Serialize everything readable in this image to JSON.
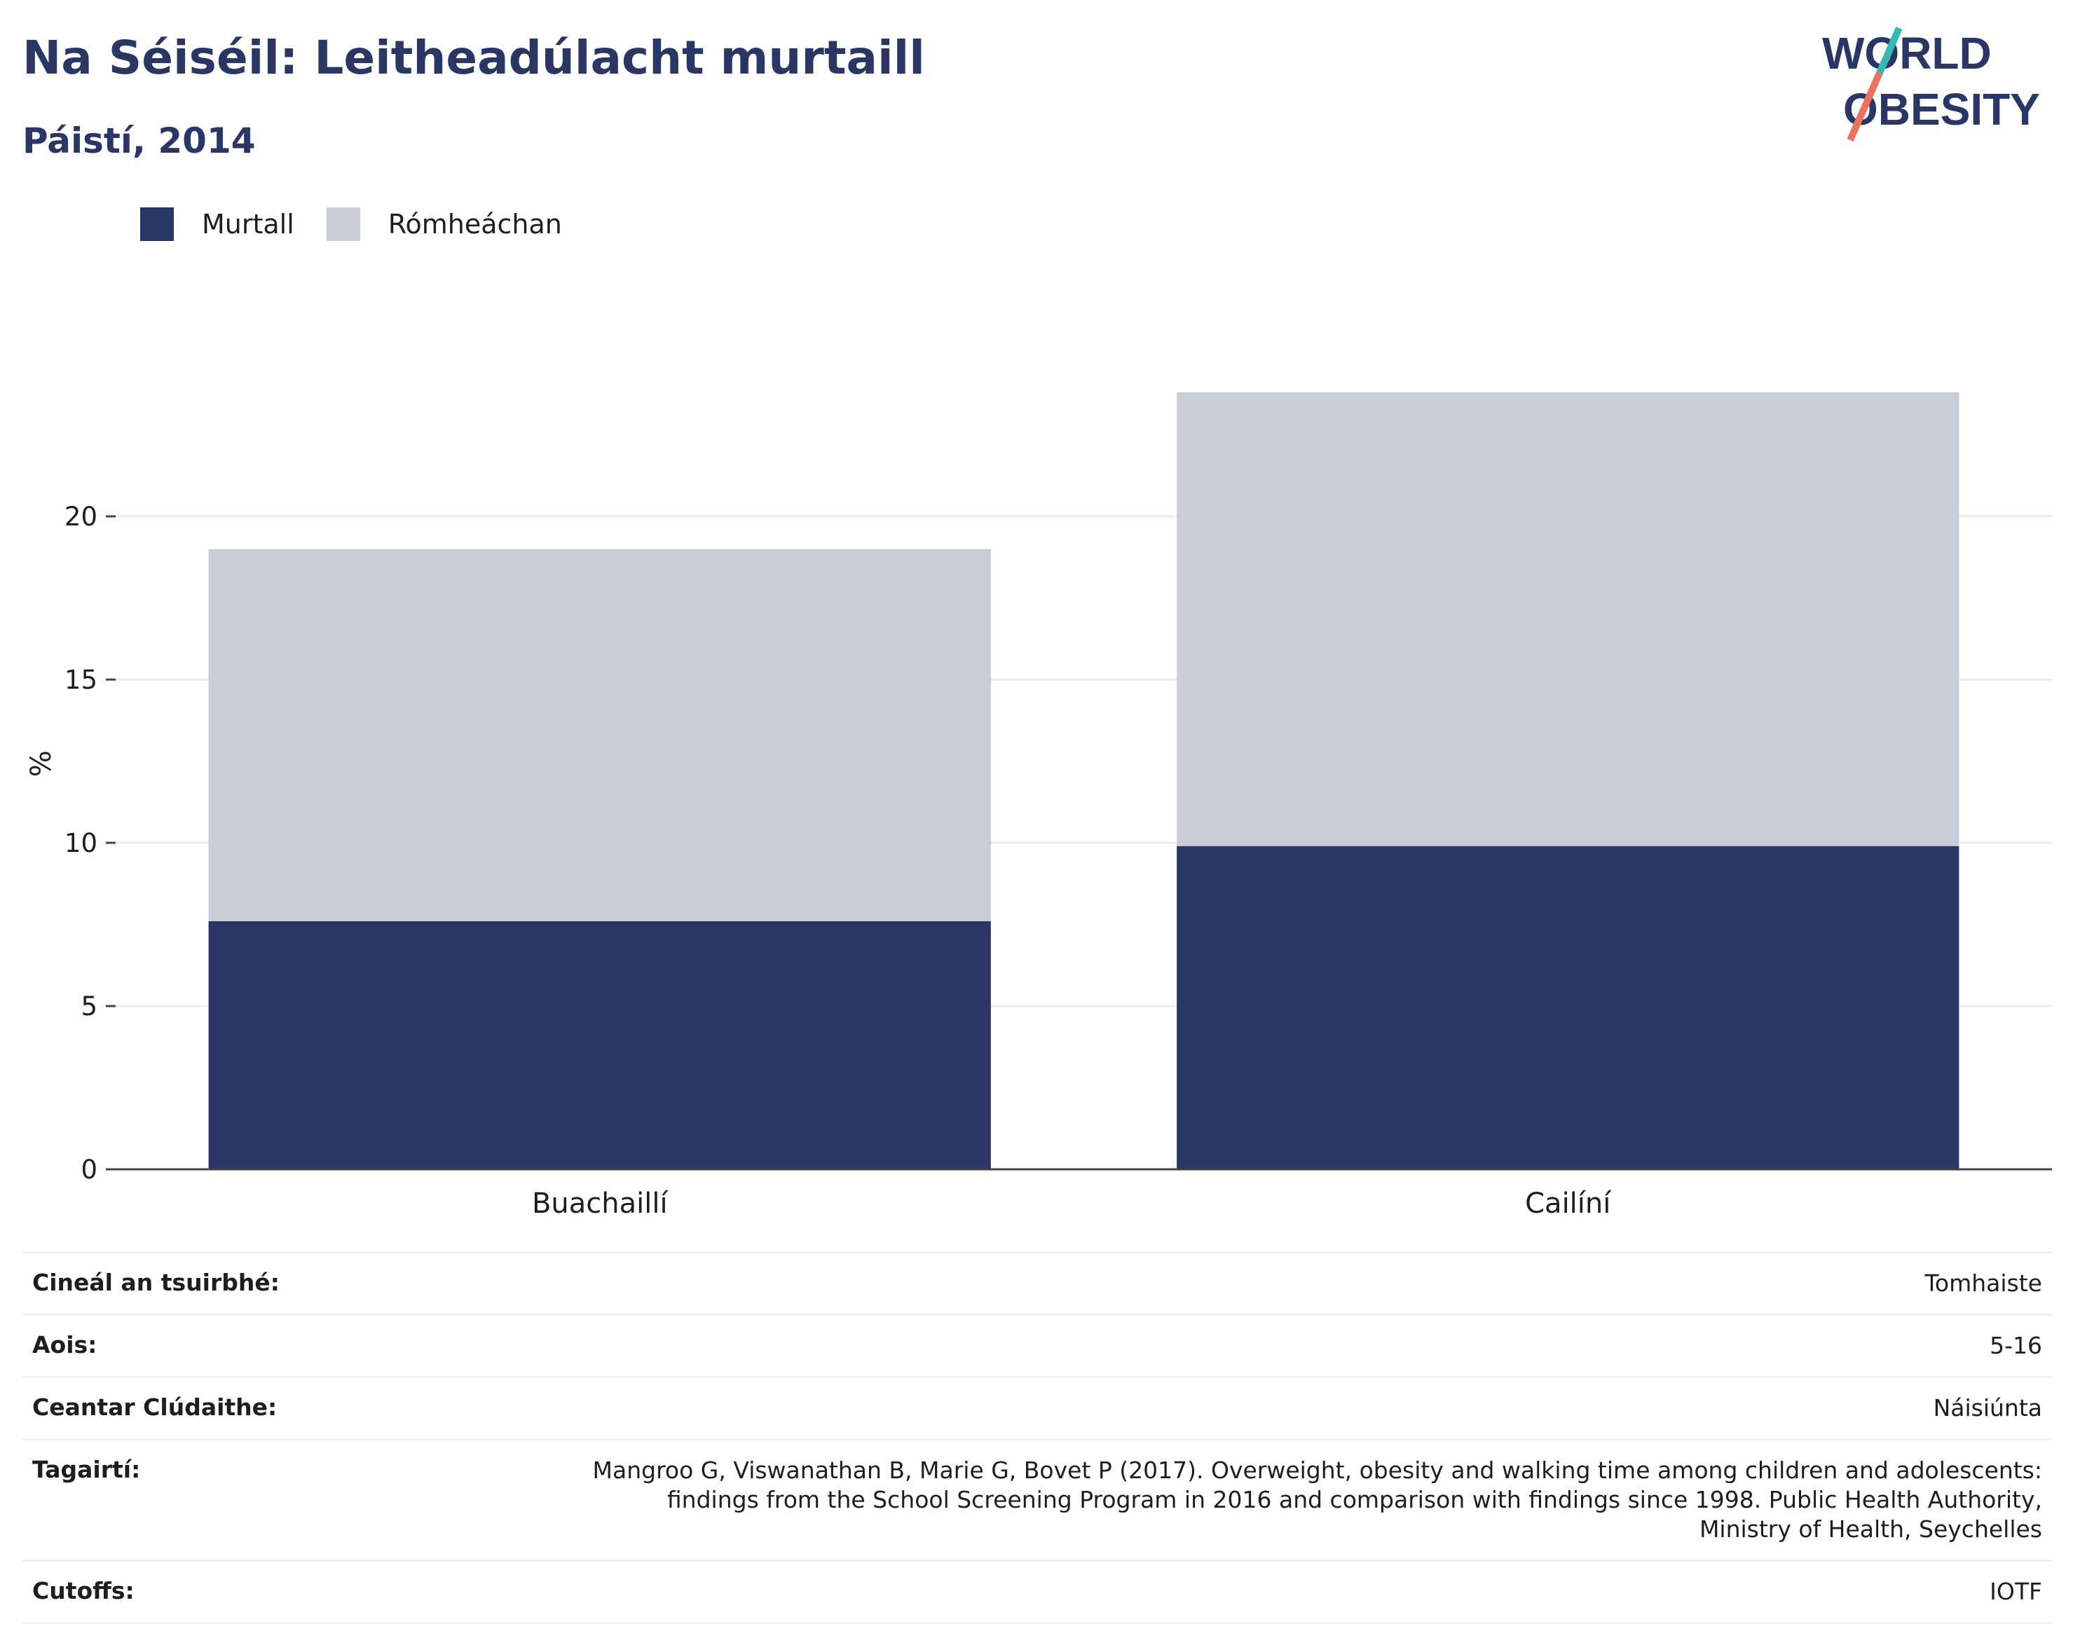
{
  "title": "Na Séiséil: Leitheadúlacht murtaill",
  "subtitle": "Páistí, 2014",
  "logo": {
    "line1": "WORLD",
    "line2": "OBESITY"
  },
  "colors": {
    "obese": "#2a3764",
    "overweight": "#caccd7",
    "title": "#2a3764",
    "logo_teal": "#35b9b3",
    "logo_coral": "#e8735f"
  },
  "chart_data": {
    "type": "bar",
    "stacked": true,
    "categories": [
      "Buachaillí",
      "Cailíní"
    ],
    "series": [
      {
        "name": "Murtall",
        "values": [
          7.6,
          9.9
        ]
      },
      {
        "name": "Rómheáchan",
        "values": [
          11.4,
          13.9
        ]
      }
    ],
    "ylabel": "%",
    "xlabel": "",
    "ylim": [
      0,
      25
    ],
    "yticks": [
      0,
      5,
      10,
      15,
      20
    ],
    "grid": true,
    "legend_position": "top-left"
  },
  "metadata": [
    {
      "key": "Cineál an tsuirbhé:",
      "value": "Tomhaiste"
    },
    {
      "key": "Aois:",
      "value": "5-16"
    },
    {
      "key": "Ceantar Clúdaithe:",
      "value": "Náisiúnta"
    },
    {
      "key": "Tagairtí:",
      "value": "Mangroo G, Viswanathan B, Marie G, Bovet P (2017). Overweight, obesity and walking time among children and adolescents: findings from the School Screening Program in 2016 and comparison with findings since 1998. Public Health Authority, Ministry of Health, Seychelles"
    },
    {
      "key": "Cutoffs:",
      "value": "IOTF"
    }
  ]
}
